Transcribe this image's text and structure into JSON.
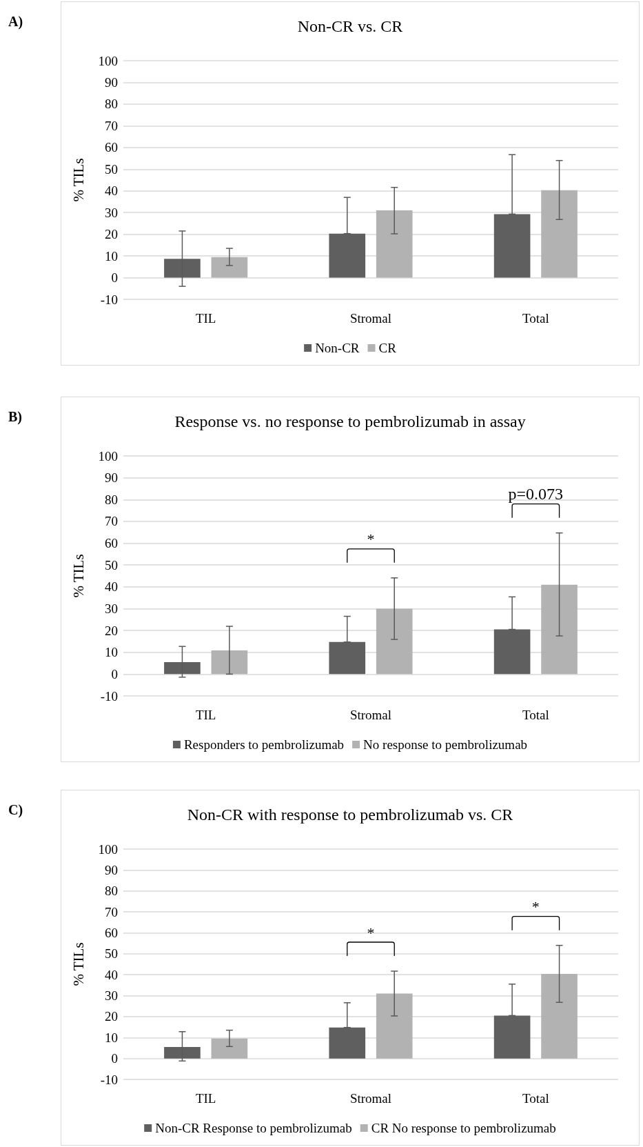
{
  "chart_data": [
    {
      "type": "bar",
      "title": "Non-CR vs. CR",
      "ylabel": "% TILs",
      "categories": [
        "TIL",
        "Stromal",
        "Total"
      ],
      "series": [
        {
          "name": "Non-CR",
          "color": "#5f5f5f",
          "values": [
            8.7,
            20.3,
            29.3
          ],
          "errors": [
            [
              -4,
              21.5
            ],
            [
              20.3,
              37
            ],
            [
              29.3,
              56.7
            ]
          ]
        },
        {
          "name": "CR",
          "color": "#b2b2b2",
          "values": [
            9.5,
            31,
            40.3
          ],
          "errors": [
            [
              5.6,
              13.5
            ],
            [
              20.2,
              41.6
            ],
            [
              26.8,
              54
            ]
          ]
        }
      ],
      "ylim": [
        -10,
        100
      ],
      "yticks": [
        -10,
        0,
        10,
        20,
        30,
        40,
        50,
        60,
        70,
        80,
        90,
        100
      ],
      "grid": "y",
      "legend": "bottom",
      "annotations": [
        "A)"
      ]
    },
    {
      "type": "bar",
      "title": "Response vs. no response to pembrolizumab in assay",
      "ylabel": "% TILs",
      "categories": [
        "TIL",
        "Stromal",
        "Total"
      ],
      "series": [
        {
          "name": "Responders to pembrolizumab",
          "color": "#5f5f5f",
          "values": [
            5.5,
            14.7,
            20.5
          ],
          "errors": [
            [
              -1.4,
              12.7
            ],
            [
              14.7,
              26.5
            ],
            [
              20.5,
              35.4
            ]
          ]
        },
        {
          "name": "No response to pembrolizumab",
          "color": "#b2b2b2",
          "values": [
            10.9,
            30,
            41
          ],
          "errors": [
            [
              0,
              21.9
            ],
            [
              15.9,
              44.1
            ],
            [
              17.5,
              64.7
            ]
          ]
        }
      ],
      "ylim": [
        -10,
        100
      ],
      "yticks": [
        -10,
        0,
        10,
        20,
        30,
        40,
        50,
        60,
        70,
        80,
        90,
        100
      ],
      "grid": "y",
      "legend": "bottom",
      "annotations": [
        "B)",
        "*",
        "p=0.073"
      ]
    },
    {
      "type": "bar",
      "title": "Non-CR with response to pembrolizumab vs. CR",
      "ylabel": "% TILs",
      "categories": [
        "TIL",
        "Stromal",
        "Total"
      ],
      "series": [
        {
          "name": "Non-CR Response to pembrolizumab",
          "color": "#5f5f5f",
          "values": [
            5.5,
            14.8,
            20.5
          ],
          "errors": [
            [
              -1.2,
              12.8
            ],
            [
              14.8,
              26.6
            ],
            [
              20.5,
              35.5
            ]
          ]
        },
        {
          "name": "CR No response to pembrolizumab",
          "color": "#b2b2b2",
          "values": [
            9.5,
            31,
            40.4
          ],
          "errors": [
            [
              5.7,
              13.5
            ],
            [
              20.3,
              41.7
            ],
            [
              26.8,
              54
            ]
          ]
        }
      ],
      "ylim": [
        -10,
        100
      ],
      "yticks": [
        -10,
        0,
        10,
        20,
        30,
        40,
        50,
        60,
        70,
        80,
        90,
        100
      ],
      "grid": "y",
      "legend": "bottom",
      "annotations": [
        "C)",
        "*",
        "*"
      ]
    }
  ]
}
